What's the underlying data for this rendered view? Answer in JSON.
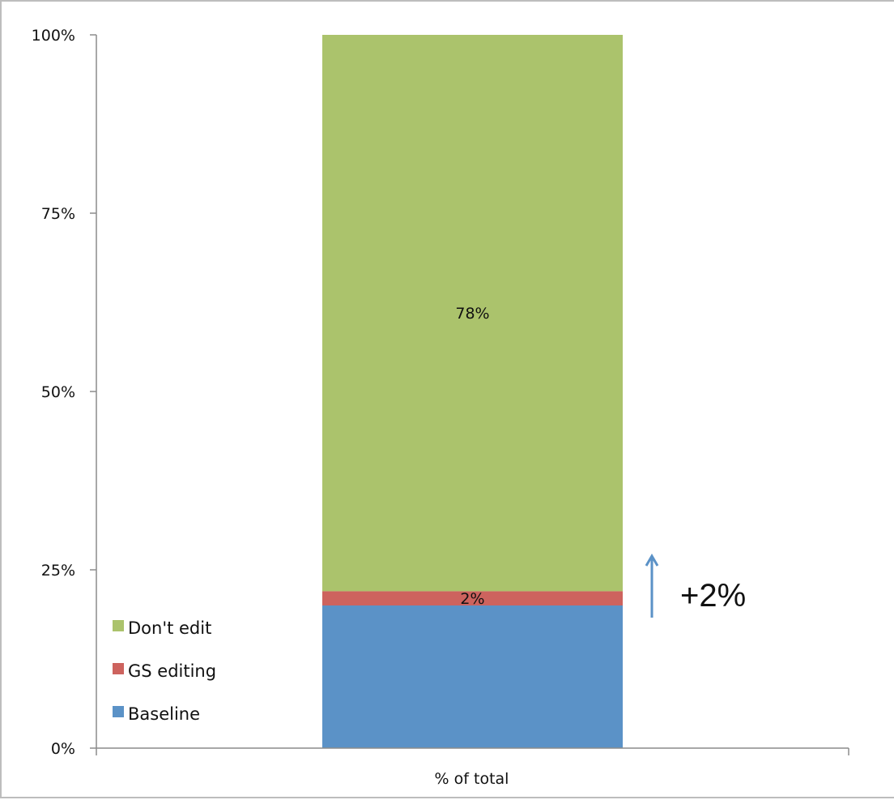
{
  "chart_data": {
    "type": "bar",
    "stacked": true,
    "normalized": true,
    "categories": [
      "% of total"
    ],
    "series": [
      {
        "name": "Baseline",
        "values": [
          20
        ],
        "color": "#5b92c7"
      },
      {
        "name": "GS editing",
        "values": [
          2
        ],
        "color": "#cd635e",
        "data_label": "2%"
      },
      {
        "name": "Don't edit",
        "values": [
          78
        ],
        "color": "#abc36c",
        "data_label": "78%"
      }
    ],
    "ylim": [
      0,
      100
    ],
    "yticks": [
      0,
      25,
      50,
      75,
      100
    ],
    "ytick_labels": [
      "0%",
      "25%",
      "50%",
      "75%",
      "100%"
    ],
    "legend": {
      "position": "bottom-left",
      "entries": [
        "Don't edit",
        "GS editing",
        "Baseline"
      ]
    },
    "annotation": {
      "text": "+2%",
      "arrow": "up",
      "color": "#5b92c7"
    },
    "grid": false,
    "axis_color": "#8c8c8c"
  }
}
